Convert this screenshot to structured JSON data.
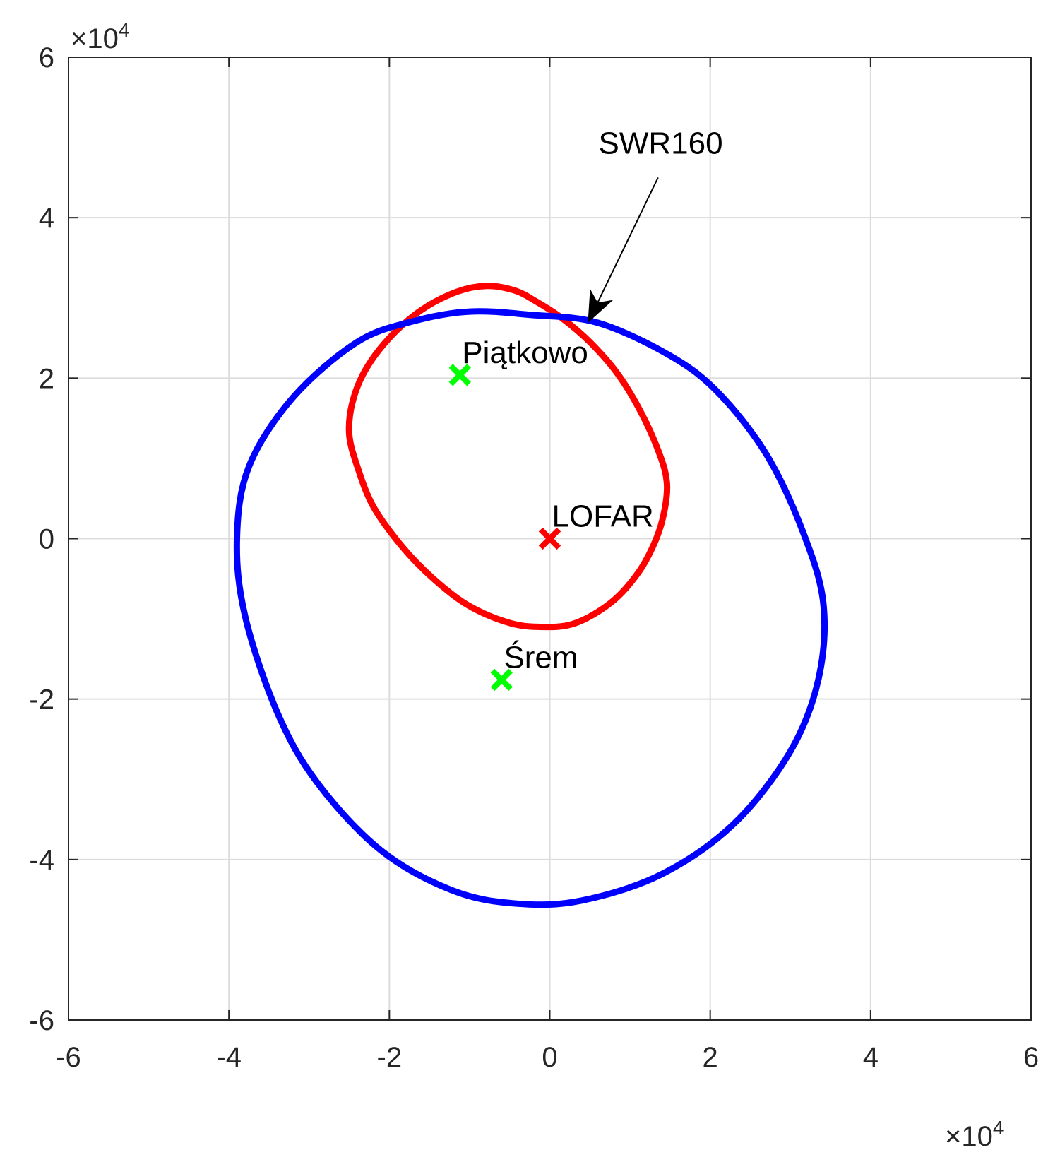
{
  "chart_data": {
    "type": "line",
    "title": "",
    "xlabel": "",
    "ylabel": "",
    "xlim": [
      -60000,
      60000
    ],
    "ylim": [
      -60000,
      60000
    ],
    "xticks": [
      -6,
      -4,
      -2,
      0,
      2,
      4,
      6
    ],
    "yticks": [
      -6,
      -4,
      -2,
      0,
      2,
      4,
      6
    ],
    "xtick_labels": [
      "-6",
      "-4",
      "-2",
      "0",
      "2",
      "4",
      "6"
    ],
    "ytick_labels": [
      "-6",
      "-4",
      "-2",
      "0",
      "2",
      "4",
      "6"
    ],
    "tick_scale": 10000,
    "x_exponent": {
      "times": "×10",
      "power": "4"
    },
    "y_exponent": {
      "times": "×10",
      "power": "4"
    },
    "grid": true,
    "box": true,
    "series": [
      {
        "kind": "closed-curve",
        "color": "#ff0000",
        "x": [
          -7800,
          -4300,
          -1600,
          1500,
          5000,
          8500,
          11500,
          13700,
          14600,
          14300,
          13200,
          11000,
          7600,
          3000,
          -1500,
          -5400,
          -10200,
          -14500,
          -18400,
          -22000,
          -24000,
          -25000,
          -24600,
          -23000,
          -20000,
          -16000,
          -11500,
          -7800
        ],
        "y": [
          31500,
          30900,
          29500,
          27500,
          24500,
          20500,
          15500,
          10500,
          7000,
          3500,
          -200,
          -4300,
          -8000,
          -10600,
          -11000,
          -10400,
          -8300,
          -5000,
          -1000,
          4000,
          9000,
          13000,
          17000,
          21000,
          25000,
          28500,
          30800,
          31500
        ]
      },
      {
        "kind": "closed-curve",
        "color": "#0000ff",
        "x": [
          -2500,
          6000,
          15000,
          21000,
          27000,
          31500,
          34100,
          33500,
          30000,
          23000,
          14000,
          4000,
          -4000,
          -12000,
          -21000,
          -29000,
          -34000,
          -38000,
          -39000,
          -37500,
          -32000,
          -24000,
          -17000,
          -10000,
          -2500
        ],
        "y": [
          27900,
          26900,
          22800,
          18200,
          10500,
          1000,
          -8000,
          -17500,
          -26500,
          -35500,
          -41800,
          -45100,
          -45500,
          -43900,
          -38900,
          -30400,
          -21600,
          -9600,
          0,
          9000,
          17600,
          24500,
          27100,
          28300,
          27900
        ]
      }
    ],
    "markers": [
      {
        "label": "Piątkowo",
        "x": -11200,
        "y": 20400,
        "color": "#00ff00"
      },
      {
        "label": "LOFAR",
        "x": 0,
        "y": 0,
        "color": "#ff0000"
      },
      {
        "label": "Śrem",
        "x": -6000,
        "y": -17600,
        "color": "#00ff00"
      }
    ],
    "annotations": [
      {
        "text": "SWR160",
        "text_x": 14000,
        "text_y": 48000,
        "from_x": 13500,
        "from_y": 45000,
        "to_x": 4800,
        "to_y": 27000
      }
    ]
  }
}
